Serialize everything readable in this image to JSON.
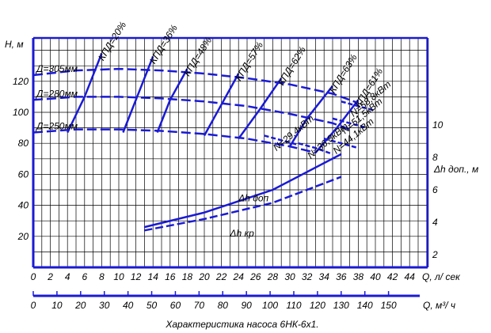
{
  "chart_data": {
    "type": "line",
    "title": "Характеристика насоса 6НК-6х1.",
    "ylabel": "Н, м",
    "xlabel": "Q, л/ сек",
    "x2label": "Q, м³/ ч",
    "y2label": "Δh доп., м",
    "xlim": [
      0,
      46
    ],
    "ylim": [
      0,
      140
    ],
    "y2lim": [
      1,
      11
    ],
    "x_ticks": [
      0,
      2,
      4,
      6,
      8,
      10,
      12,
      14,
      16,
      18,
      20,
      22,
      24,
      26,
      28,
      30,
      32,
      34,
      36,
      38,
      40,
      42,
      44
    ],
    "y_ticks": [
      20,
      40,
      60,
      80,
      100,
      120
    ],
    "y2_ticks": [
      2,
      4,
      6,
      8,
      10
    ],
    "x2_ticks": [
      0,
      10,
      20,
      30,
      40,
      50,
      60,
      70,
      80,
      90,
      100,
      110,
      120,
      130,
      140,
      150
    ],
    "grid": true,
    "head_curves": [
      {
        "name": "Д=305мм",
        "x": [
          0,
          5,
          10,
          15,
          20,
          25,
          30,
          35,
          38
        ],
        "y": [
          124,
          127,
          128,
          127,
          125,
          122,
          118,
          112,
          106
        ]
      },
      {
        "name": "Д=280мм",
        "x": [
          0,
          5,
          10,
          15,
          20,
          25,
          30,
          35,
          37
        ],
        "y": [
          108,
          110,
          110,
          109,
          107,
          104,
          99,
          93,
          89
        ]
      },
      {
        "name": "Д=250мм",
        "x": [
          0,
          5,
          10,
          15,
          20,
          25,
          30,
          33
        ],
        "y": [
          87,
          89,
          89,
          88,
          86,
          83,
          78,
          74
        ]
      }
    ],
    "efficiency_curves": [
      {
        "name": "КПД=20%",
        "x": [
          4,
          6,
          8
        ],
        "y": [
          87,
          110,
          138
        ]
      },
      {
        "name": "КПД=36%",
        "x": [
          10.5,
          12,
          14
        ],
        "y": [
          87,
          108,
          136
        ]
      },
      {
        "name": "КПД=48%",
        "x": [
          14.5,
          16,
          18
        ],
        "y": [
          87,
          108,
          128
        ]
      },
      {
        "name": "КПД=57%",
        "x": [
          20,
          22,
          24
        ],
        "y": [
          85,
          105,
          125
        ]
      },
      {
        "name": "КПД=62%",
        "x": [
          24,
          26.5,
          29
        ],
        "y": [
          83,
          102,
          122
        ]
      },
      {
        "name": "КПД=63%",
        "x": [
          30,
          32,
          35
        ],
        "y": [
          78,
          96,
          117
        ]
      },
      {
        "name": "КПД=61%",
        "x": [
          33,
          35.5,
          38
        ],
        "y": [
          74,
          90,
          108
        ]
      }
    ],
    "power_curves": [
      {
        "name": "N=29,4кВт",
        "x": [
          27,
          29,
          31
        ],
        "y": [
          85,
          82,
          79
        ]
      },
      {
        "name": "N=36,8кВт",
        "x": [
          31,
          33,
          35
        ],
        "y": [
          80,
          77,
          73
        ]
      },
      {
        "name": "N=44,1кВт",
        "x": [
          34,
          36,
          38
        ],
        "y": [
          83,
          80,
          77
        ]
      },
      {
        "name": "N=51,5кВт",
        "x": [
          35,
          37,
          39
        ],
        "y": [
          96,
          93,
          90
        ]
      },
      {
        "name": "N=58,8кВт",
        "x": [
          36,
          38,
          40
        ],
        "y": [
          107,
          104,
          101
        ]
      }
    ],
    "npsh_curves": [
      {
        "name": "Δh доп",
        "x": [
          13,
          20,
          28,
          36
        ],
        "y": [
          3.7,
          4.6,
          6.0,
          8.2
        ]
      },
      {
        "name": "Δh кр",
        "x": [
          13,
          20,
          28,
          36
        ],
        "y": [
          3.5,
          4.2,
          5.2,
          6.8
        ]
      }
    ],
    "colors": {
      "curve": "#1a1ad6",
      "grid": "#000000",
      "axis": "#1a1ad6"
    }
  }
}
